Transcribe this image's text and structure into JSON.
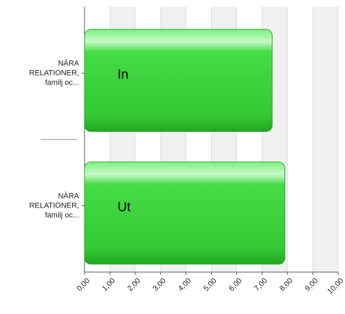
{
  "chart_data": {
    "type": "hbar",
    "categories": [
      [
        "NÄRA",
        "RELATIONER,",
        "familj oc..."
      ],
      [
        "NÄRA",
        "RELATIONER,",
        "familj oc..."
      ]
    ],
    "values": [
      7.4,
      7.9
    ],
    "bar_labels": [
      "In",
      "Ut"
    ],
    "color": "#3ed23e",
    "xlim": [
      0,
      10
    ],
    "xticks": [
      {
        "value": 0,
        "label": "0,00"
      },
      {
        "value": 1,
        "label": "1,00"
      },
      {
        "value": 2,
        "label": "2,00"
      },
      {
        "value": 3,
        "label": "3,00"
      },
      {
        "value": 4,
        "label": "4,00"
      },
      {
        "value": 5,
        "label": "5,00"
      },
      {
        "value": 6,
        "label": "6,00"
      },
      {
        "value": 7,
        "label": "7,00"
      },
      {
        "value": 8,
        "label": "8,00"
      },
      {
        "value": 9,
        "label": "9,00"
      },
      {
        "value": 10,
        "label": "10,00"
      }
    ],
    "grid": true
  }
}
